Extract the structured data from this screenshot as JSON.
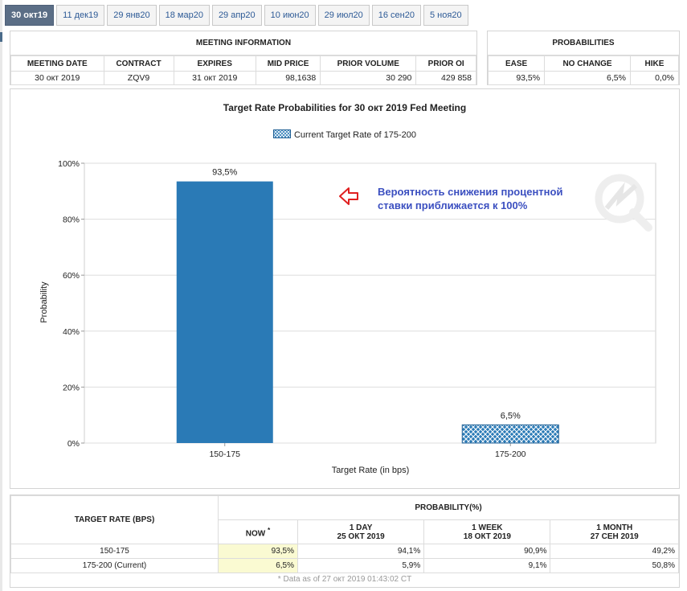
{
  "tabs": [
    "30 окт19",
    "11 дек19",
    "29 янв20",
    "18 мар20",
    "29 апр20",
    "10 июн20",
    "29 июл20",
    "16 сен20",
    "5 ноя20"
  ],
  "meeting": {
    "title": "MEETING INFORMATION",
    "headers": [
      "MEETING DATE",
      "CONTRACT",
      "EXPIRES",
      "MID PRICE",
      "PRIOR VOLUME",
      "PRIOR OI"
    ],
    "values": [
      "30 окт 2019",
      "ZQV9",
      "31 окт 2019",
      "98,1638",
      "30 290",
      "429 858"
    ]
  },
  "probabilities": {
    "title": "PROBABILITIES",
    "headers": [
      "EASE",
      "NO CHANGE",
      "HIKE"
    ],
    "values": [
      "93,5%",
      "6,5%",
      "0,0%"
    ]
  },
  "chart_data": {
    "type": "bar",
    "title": "Target Rate Probabilities for 30 окт 2019 Fed Meeting",
    "legend": "Current Target Rate of 175-200",
    "categories": [
      "150-175",
      "175-200"
    ],
    "values": [
      93.5,
      6.5
    ],
    "value_labels": [
      "93,5%",
      "6,5%"
    ],
    "current_category": "175-200",
    "xlabel": "Target Rate (in bps)",
    "ylabel": "Probability",
    "yticks": [
      "0%",
      "20%",
      "40%",
      "60%",
      "80%",
      "100%"
    ],
    "ylim": [
      0,
      100
    ],
    "colors": {
      "bar": "#2a7ab6",
      "hatch": "#2a7ab6"
    }
  },
  "annotation": {
    "line1": "Вероятность снижения процентной",
    "line2": "ставки приближается к 100%"
  },
  "bottom": {
    "rate_header": "TARGET RATE (BPS)",
    "prob_header": "PROBABILITY(%)",
    "now_label": "NOW",
    "now_mark": "*",
    "cols": [
      {
        "label": "1 DAY",
        "date": "25 ОКТ 2019"
      },
      {
        "label": "1 WEEK",
        "date": "18 ОКТ 2019"
      },
      {
        "label": "1 MONTH",
        "date": "27 СЕН 2019"
      }
    ],
    "rows": [
      {
        "rate": "150-175",
        "now": "93,5%",
        "d1": "94,1%",
        "w1": "90,9%",
        "m1": "49,2%"
      },
      {
        "rate": "175-200 (Current)",
        "now": "6,5%",
        "d1": "5,9%",
        "w1": "9,1%",
        "m1": "50,8%"
      }
    ],
    "note": "* Data as of 27 окт 2019 01:43:02 CT"
  }
}
